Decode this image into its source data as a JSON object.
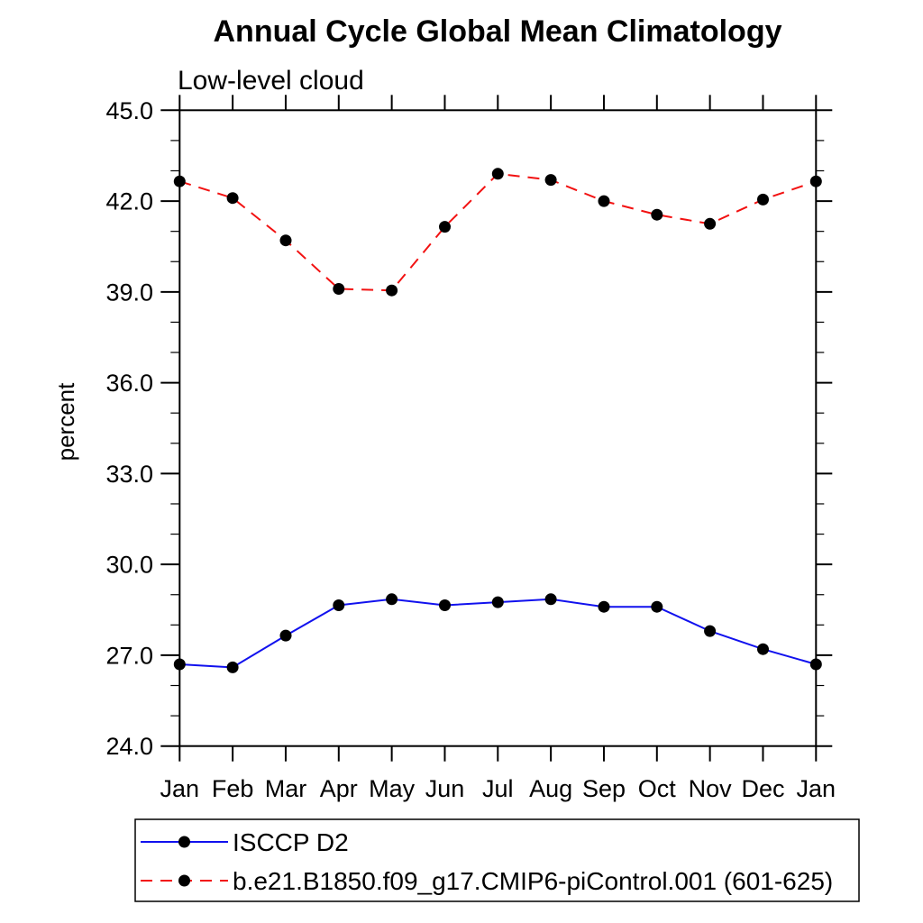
{
  "page": {
    "background_color": "#ffffff"
  },
  "chart_data": {
    "type": "line",
    "title": "Annual Cycle Global Mean Climatology",
    "subtitle": "Low-level cloud",
    "xlabel": "",
    "ylabel": "percent",
    "x_categories": [
      "Jan",
      "Feb",
      "Mar",
      "Apr",
      "May",
      "Jun",
      "Jul",
      "Aug",
      "Sep",
      "Oct",
      "Nov",
      "Dec",
      "Jan"
    ],
    "ylim": [
      24.0,
      45.0
    ],
    "ytick_major_values": [
      24,
      27,
      30,
      33,
      36,
      39,
      42,
      45
    ],
    "ytick_major_labels": [
      "24.0",
      "27.0",
      "30.0",
      "33.0",
      "36.0",
      "39.0",
      "42.0",
      "45.0"
    ],
    "ytick_minor_step": 1.0,
    "grid": false,
    "axis_color": "#000000",
    "series": [
      {
        "name": "ISCCP D2",
        "color": "#1111ee",
        "line_style": "solid",
        "marker": "filled-circle",
        "marker_color": "#000000",
        "values": [
          26.7,
          26.6,
          27.65,
          28.65,
          28.85,
          28.65,
          28.75,
          28.85,
          28.6,
          28.6,
          27.8,
          27.2,
          26.7
        ]
      },
      {
        "name": "b.e21.B1850.f09_g17.CMIP6-piControl.001 (601-625)",
        "color": "#f21111",
        "line_style": "dashed",
        "marker": "filled-circle",
        "marker_color": "#000000",
        "values": [
          42.65,
          42.1,
          40.7,
          39.1,
          39.05,
          41.15,
          42.9,
          42.7,
          42.0,
          41.55,
          41.25,
          42.05,
          42.65
        ]
      }
    ],
    "legend": {
      "position": "bottom-left",
      "border": true,
      "border_color": "#000000",
      "entries": [
        "ISCCP D2",
        "b.e21.B1850.f09_g17.CMIP6-piControl.001 (601-625)"
      ]
    }
  }
}
